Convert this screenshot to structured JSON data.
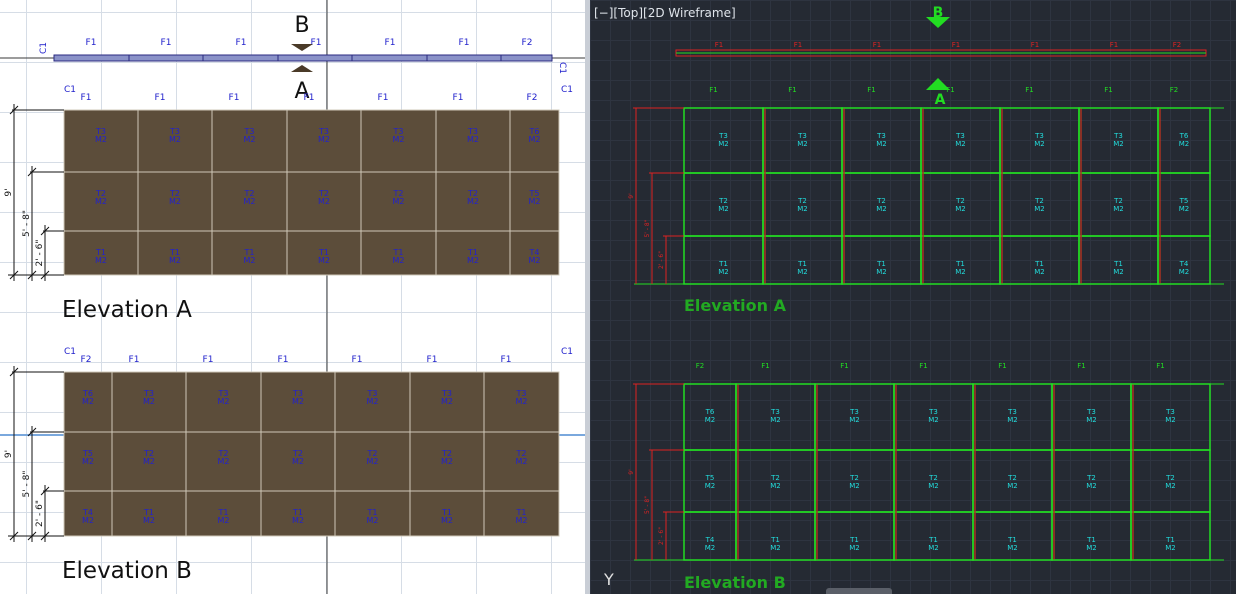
{
  "left_view": {
    "section_top": "B",
    "section_bottom": "A",
    "corner_label": "C1",
    "plan_labels": [
      "F1",
      "F1",
      "F1",
      "F1",
      "F1",
      "F1",
      "F2"
    ],
    "elevation_a": {
      "title": "Elevation A",
      "columns": [
        "F1",
        "F1",
        "F1",
        "F1",
        "F1",
        "F1",
        "F2"
      ],
      "rows": [
        [
          "T3\nM2",
          "T3\nM2",
          "T3\nM2",
          "T3\nM2",
          "T3\nM2",
          "T3\nM2",
          "T6\nM2"
        ],
        [
          "T2\nM2",
          "T2\nM2",
          "T2\nM2",
          "T2\nM2",
          "T2\nM2",
          "T2\nM2",
          "T5\nM2"
        ],
        [
          "T1\nM2",
          "T1\nM2",
          "T1\nM2",
          "T1\nM2",
          "T1\nM2",
          "T1\nM2",
          "T4\nM2"
        ]
      ],
      "dims": [
        "9'",
        "5' - 8\"",
        "2' - 6\""
      ]
    },
    "elevation_b": {
      "title": "Elevation B",
      "columns": [
        "F2",
        "F1",
        "F1",
        "F1",
        "F1",
        "F1",
        "F1"
      ],
      "rows": [
        [
          "T6\nM2",
          "T3\nM2",
          "T3\nM2",
          "T3\nM2",
          "T3\nM2",
          "T3\nM2",
          "T3\nM2"
        ],
        [
          "T5\nM2",
          "T2\nM2",
          "T2\nM2",
          "T2\nM2",
          "T2\nM2",
          "T2\nM2",
          "T2\nM2"
        ],
        [
          "T4\nM2",
          "T1\nM2",
          "T1\nM2",
          "T1\nM2",
          "T1\nM2",
          "T1\nM2",
          "T1\nM2"
        ]
      ],
      "dims": [
        "9'",
        "5' - 8\"",
        "2' - 6\""
      ]
    }
  },
  "right_view": {
    "viewport_label": "[−][Top][2D Wireframe]",
    "section_top": "B",
    "section_bottom": "A",
    "elevation_a_title": "Elevation A",
    "elevation_b_title": "Elevation B",
    "ucs_icon": "Y"
  },
  "colors": {
    "panel_fill": "#5c4d3a",
    "tag_text": "#2222cc",
    "cad_green": "#22dd22",
    "cad_red": "#dd2222",
    "cad_cyan": "#22dddd"
  }
}
